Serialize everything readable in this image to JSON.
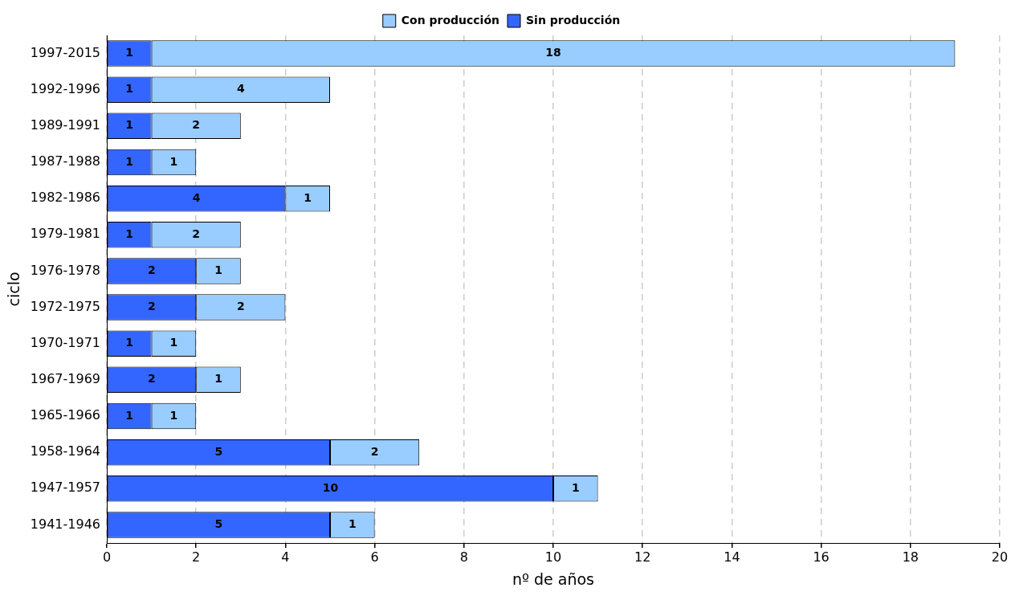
{
  "chart_data": {
    "type": "bar",
    "orientation": "horizontal",
    "stacked": true,
    "xlabel": "nº de años",
    "ylabel": "ciclo",
    "categories": [
      "1997-2015",
      "1992-1996",
      "1989-1991",
      "1987-1988",
      "1982-1986",
      "1979-1981",
      "1976-1978",
      "1972-1975",
      "1970-1971",
      "1967-1969",
      "1965-1966",
      "1958-1964",
      "1947-1957",
      "1941-1946"
    ],
    "series": [
      {
        "name": "Sin producción",
        "color": "#3366ff",
        "values": [
          1,
          1,
          1,
          1,
          4,
          1,
          2,
          2,
          1,
          2,
          1,
          5,
          10,
          5
        ]
      },
      {
        "name": "Con producción",
        "color": "#99ccff",
        "values": [
          18,
          4,
          2,
          1,
          1,
          2,
          1,
          2,
          1,
          1,
          1,
          2,
          1,
          1
        ]
      }
    ],
    "xlim": [
      0,
      20
    ],
    "xticks": [
      0,
      2,
      4,
      6,
      8,
      10,
      12,
      14,
      16,
      18,
      20
    ],
    "grid": "x",
    "legend": "top",
    "data_labels": true
  }
}
